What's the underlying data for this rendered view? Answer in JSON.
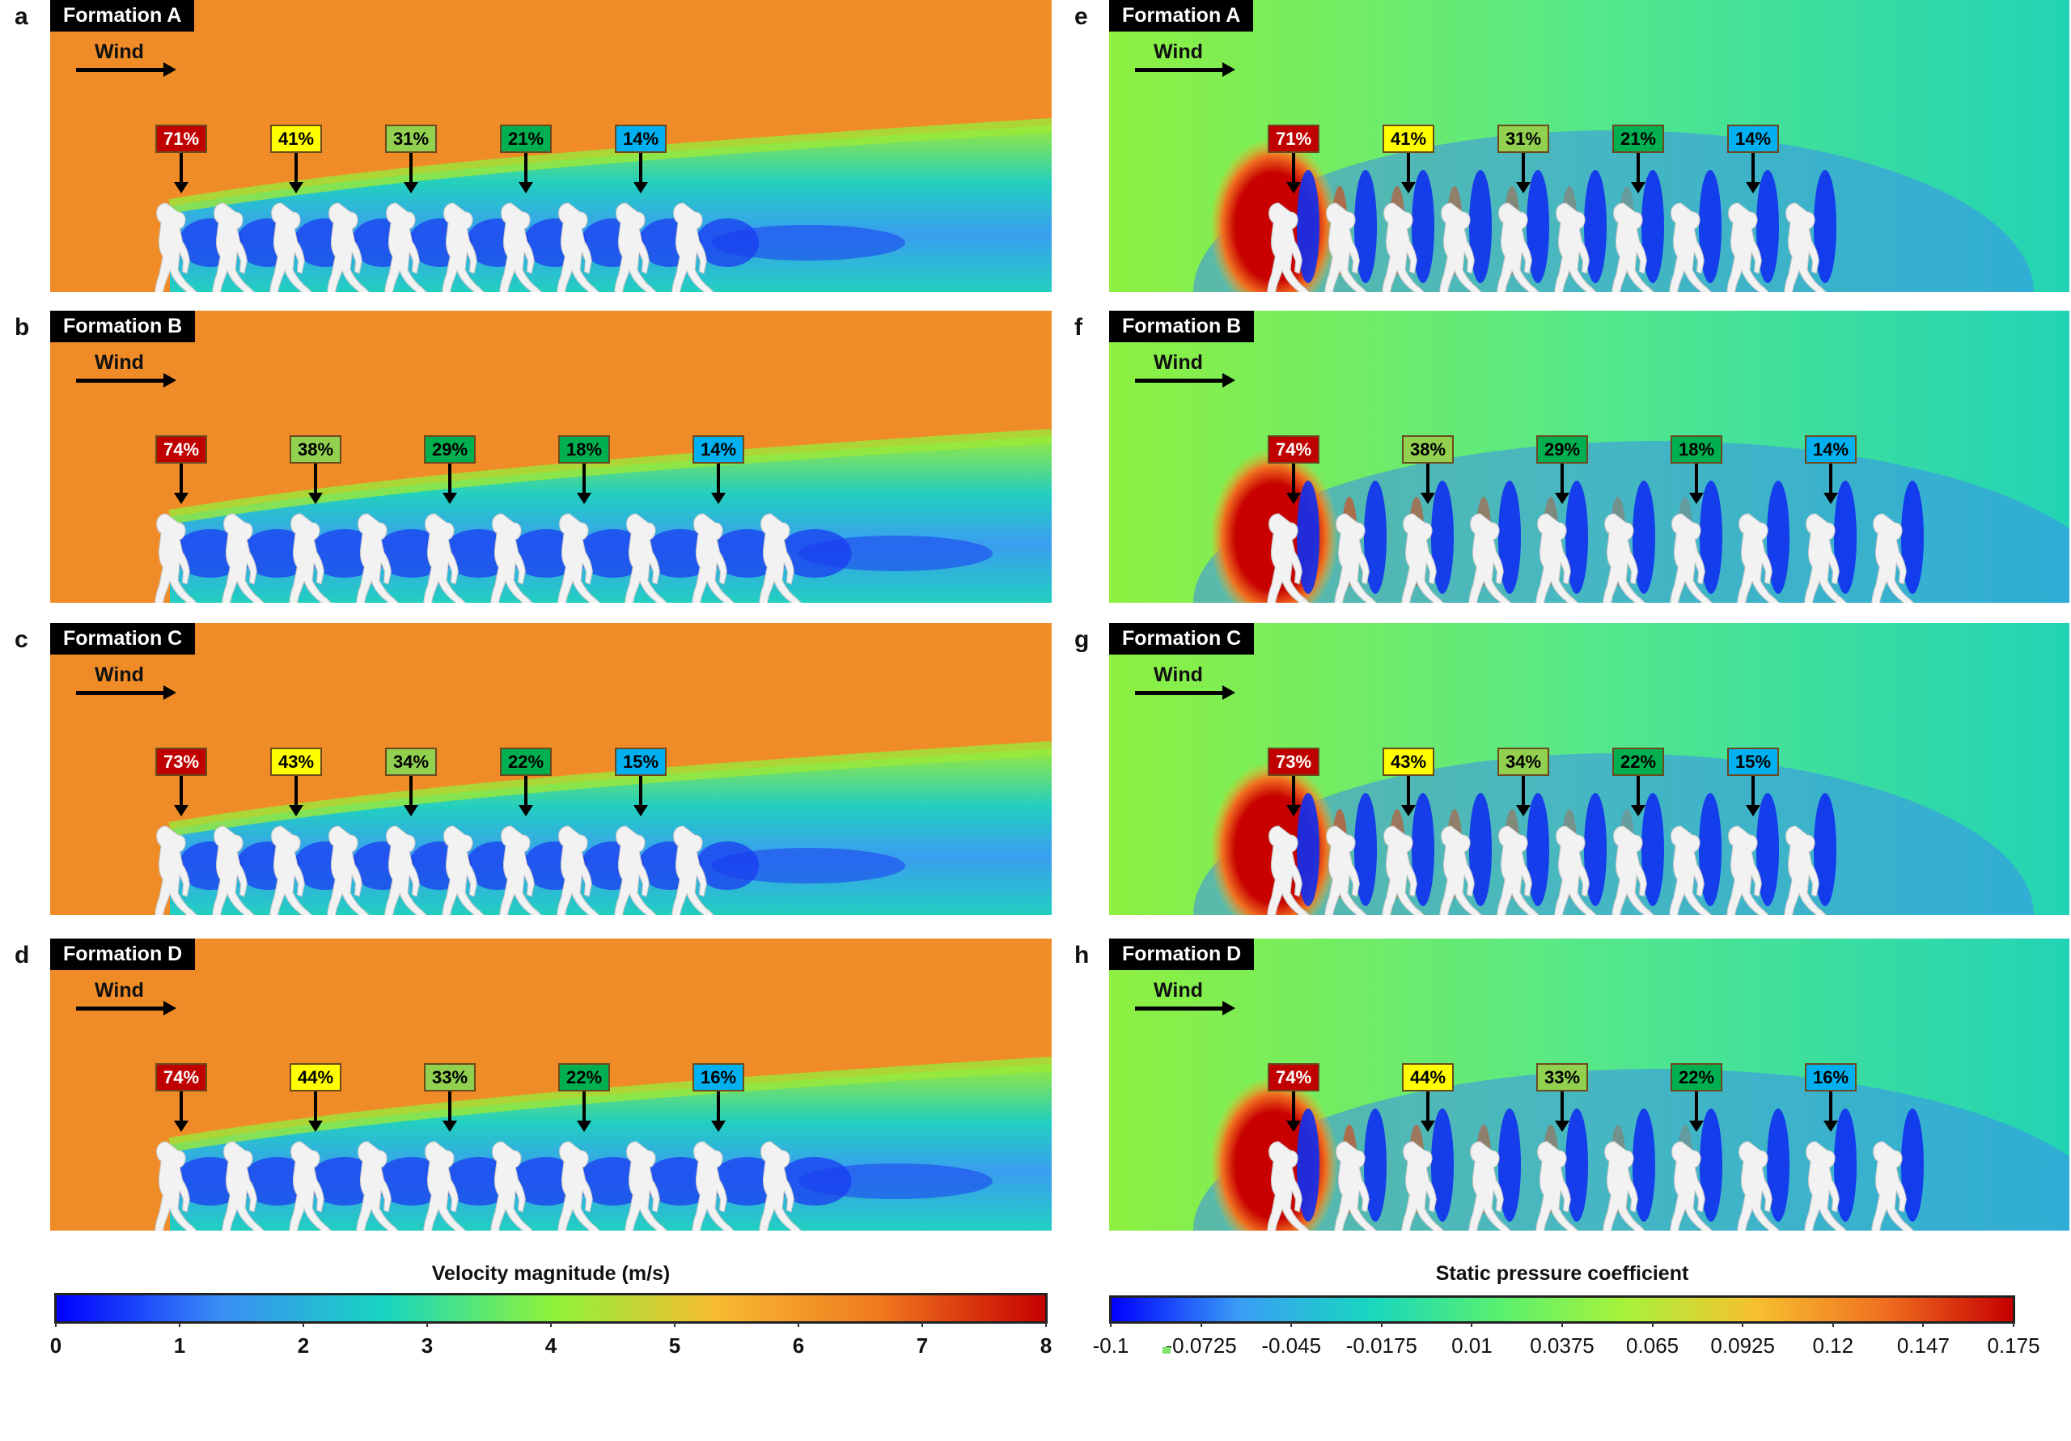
{
  "figure": {
    "left_column_field": "velocity",
    "right_column_field": "pressure",
    "wind_label": "Wind",
    "panels": [
      {
        "letter": "a",
        "formation": "Formation A",
        "field": "velocity",
        "runners": 10,
        "spacing_class": "tight",
        "tags": [
          {
            "text": "71%",
            "color": "#c00000",
            "text_color": "#ffffff"
          },
          {
            "text": "41%",
            "color": "#ffff00",
            "text_color": "#000000"
          },
          {
            "text": "31%",
            "color": "#92d050",
            "text_color": "#000000"
          },
          {
            "text": "21%",
            "color": "#00b050",
            "text_color": "#000000"
          },
          {
            "text": "14%",
            "color": "#00b0f0",
            "text_color": "#000000"
          }
        ]
      },
      {
        "letter": "b",
        "formation": "Formation B",
        "field": "velocity",
        "runners": 10,
        "spacing_class": "wide",
        "tags": [
          {
            "text": "74%",
            "color": "#c00000",
            "text_color": "#ffffff"
          },
          {
            "text": "38%",
            "color": "#92d050",
            "text_color": "#000000"
          },
          {
            "text": "29%",
            "color": "#00b050",
            "text_color": "#000000"
          },
          {
            "text": "18%",
            "color": "#00b050",
            "text_color": "#000000"
          },
          {
            "text": "14%",
            "color": "#00b0f0",
            "text_color": "#000000"
          }
        ]
      },
      {
        "letter": "c",
        "formation": "Formation C",
        "field": "velocity",
        "runners": 10,
        "spacing_class": "tight",
        "tags": [
          {
            "text": "73%",
            "color": "#c00000",
            "text_color": "#ffffff"
          },
          {
            "text": "43%",
            "color": "#ffff00",
            "text_color": "#000000"
          },
          {
            "text": "34%",
            "color": "#92d050",
            "text_color": "#000000"
          },
          {
            "text": "22%",
            "color": "#00b050",
            "text_color": "#000000"
          },
          {
            "text": "15%",
            "color": "#00b0f0",
            "text_color": "#000000"
          }
        ]
      },
      {
        "letter": "d",
        "formation": "Formation D",
        "field": "velocity",
        "runners": 10,
        "spacing_class": "wide",
        "tags": [
          {
            "text": "74%",
            "color": "#c00000",
            "text_color": "#ffffff"
          },
          {
            "text": "44%",
            "color": "#ffff00",
            "text_color": "#000000"
          },
          {
            "text": "33%",
            "color": "#92d050",
            "text_color": "#000000"
          },
          {
            "text": "22%",
            "color": "#00b050",
            "text_color": "#000000"
          },
          {
            "text": "16%",
            "color": "#00b0f0",
            "text_color": "#000000"
          }
        ]
      },
      {
        "letter": "e",
        "formation": "Formation A",
        "field": "pressure",
        "runners": 10,
        "spacing_class": "tight",
        "tags": [
          {
            "text": "71%",
            "color": "#c00000",
            "text_color": "#ffffff"
          },
          {
            "text": "41%",
            "color": "#ffff00",
            "text_color": "#000000"
          },
          {
            "text": "31%",
            "color": "#92d050",
            "text_color": "#000000"
          },
          {
            "text": "21%",
            "color": "#00b050",
            "text_color": "#000000"
          },
          {
            "text": "14%",
            "color": "#00b0f0",
            "text_color": "#000000"
          }
        ]
      },
      {
        "letter": "f",
        "formation": "Formation B",
        "field": "pressure",
        "runners": 10,
        "spacing_class": "wide",
        "tags": [
          {
            "text": "74%",
            "color": "#c00000",
            "text_color": "#ffffff"
          },
          {
            "text": "38%",
            "color": "#92d050",
            "text_color": "#000000"
          },
          {
            "text": "29%",
            "color": "#00b050",
            "text_color": "#000000"
          },
          {
            "text": "18%",
            "color": "#00b050",
            "text_color": "#000000"
          },
          {
            "text": "14%",
            "color": "#00b0f0",
            "text_color": "#000000"
          }
        ]
      },
      {
        "letter": "g",
        "formation": "Formation C",
        "field": "pressure",
        "runners": 10,
        "spacing_class": "tight",
        "tags": [
          {
            "text": "73%",
            "color": "#c00000",
            "text_color": "#ffffff"
          },
          {
            "text": "43%",
            "color": "#ffff00",
            "text_color": "#000000"
          },
          {
            "text": "34%",
            "color": "#92d050",
            "text_color": "#000000"
          },
          {
            "text": "22%",
            "color": "#00b050",
            "text_color": "#000000"
          },
          {
            "text": "15%",
            "color": "#00b0f0",
            "text_color": "#000000"
          }
        ]
      },
      {
        "letter": "h",
        "formation": "Formation D",
        "field": "pressure",
        "runners": 10,
        "spacing_class": "wide",
        "tags": [
          {
            "text": "74%",
            "color": "#c00000",
            "text_color": "#ffffff"
          },
          {
            "text": "44%",
            "color": "#ffff00",
            "text_color": "#000000"
          },
          {
            "text": "33%",
            "color": "#92d050",
            "text_color": "#000000"
          },
          {
            "text": "22%",
            "color": "#00b050",
            "text_color": "#000000"
          },
          {
            "text": "16%",
            "color": "#00b0f0",
            "text_color": "#000000"
          }
        ]
      }
    ]
  },
  "colorbars": {
    "velocity": {
      "title": "Velocity magnitude (m/s)",
      "ticks": [
        "0",
        "1",
        "2",
        "3",
        "4",
        "5",
        "6",
        "7",
        "8"
      ],
      "range": [
        0,
        8
      ],
      "colors": [
        "#0000ff",
        "#3a8ef5",
        "#18d6c0",
        "#8df33a",
        "#f7bb32",
        "#f0781e",
        "#c60000"
      ]
    },
    "pressure": {
      "title": "Static pressure coefficient",
      "ticks": [
        "-0.1",
        "-0.0725",
        "-0.045",
        "-0.0175",
        "0.01",
        "0.0375",
        "0.065",
        "0.0925",
        "0.12",
        "0.147",
        "0.175"
      ],
      "range": [
        -0.1,
        0.175
      ],
      "colors": [
        "#0000ff",
        "#3a9ef5",
        "#18d6c0",
        "#58f070",
        "#a8f23a",
        "#f7c030",
        "#f07020",
        "#c60000"
      ]
    }
  },
  "field_colors": {
    "velocity_freestream": "#f08c28",
    "velocity_wake_edge": "#9ae83a",
    "velocity_wake_mid": "#22cfc0",
    "velocity_wake_core": "#1a3cf0",
    "pressure_freestream": "#8ef040",
    "pressure_far": "#22d3b5",
    "pressure_stagnation": "#c80000",
    "pressure_low": "#1030f0"
  }
}
